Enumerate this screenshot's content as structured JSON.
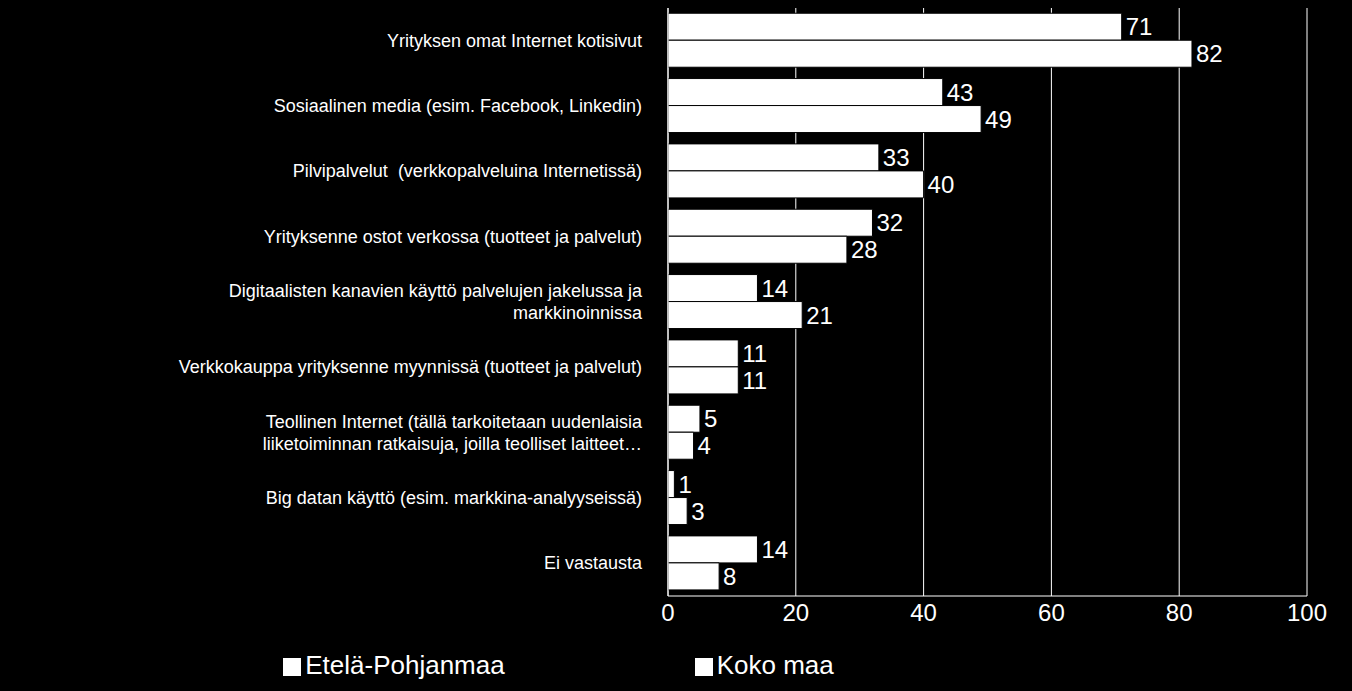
{
  "chart_data": {
    "type": "bar",
    "orientation": "horizontal",
    "categories": [
      "Yrityksen omat Internet kotisivut",
      "Sosiaalinen media (esim. Facebook, Linkedin)",
      "Pilvipalvelut  (verkkopalveluina Internetissä)",
      "Yrityksenne ostot verkossa (tuotteet ja palvelut)",
      "Digitaalisten kanavien käyttö palvelujen jakelussa ja markkinoinnissa",
      "Verkkokauppa yrityksenne myynnissä (tuotteet ja palvelut)",
      "Teollinen Internet (tällä tarkoitetaan uudenlaisia liiketoiminnan ratkaisuja, joilla teolliset laitteet…",
      "Big datan käyttö (esim. markkina-analyyseissä)",
      "Ei vastausta"
    ],
    "series": [
      {
        "name": "Etelä-Pohjanmaa",
        "color": "#ffffff",
        "values": [
          71,
          43,
          33,
          32,
          14,
          11,
          5,
          1,
          14
        ]
      },
      {
        "name": "Koko maa",
        "color": "#ffffff",
        "values": [
          82,
          49,
          40,
          28,
          21,
          11,
          4,
          3,
          8
        ]
      }
    ],
    "xlim": [
      0,
      100
    ],
    "xticks": [
      0,
      20,
      40,
      60,
      80,
      100
    ],
    "grid": true,
    "data_labels": true,
    "legend": "bottom"
  }
}
